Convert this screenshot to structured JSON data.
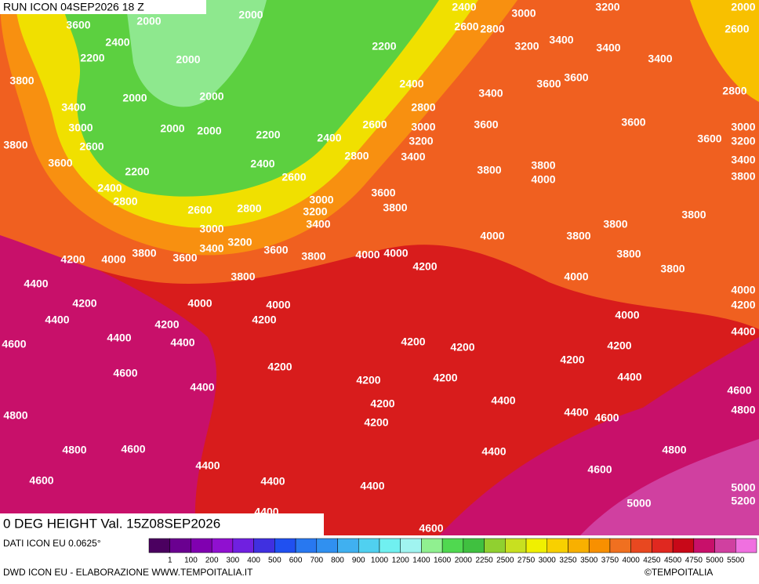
{
  "header": {
    "run": "RUN ICON 04SEP2026 18 Z",
    "field": "0 DEG HEIGHT Val. 15Z08SEP2026"
  },
  "footer": {
    "source": "DATI ICON EU 0.0625°",
    "credit": "DWD ICON EU - ELABORAZIONE WWW.TEMPOITALIA.IT",
    "copyright": "©TEMPOITALIA"
  },
  "contour_labels": [
    3600,
    2000,
    2000,
    2400,
    2200,
    2000,
    2200,
    2400,
    2600,
    2800,
    3000,
    3200,
    3200,
    3400,
    3400,
    3400,
    2000,
    2600,
    3800,
    2000,
    2000,
    3400,
    3000,
    2000,
    2000,
    2400,
    2800,
    3600,
    3600,
    3400,
    2800,
    3800,
    2600,
    2200,
    2400,
    2600,
    3000,
    3200,
    3400,
    3600,
    3600,
    3600,
    3000,
    3200,
    3400,
    3800,
    3600,
    2200,
    2400,
    2800,
    2600,
    3800,
    3800,
    4000,
    2400,
    2800,
    3000,
    3200,
    3400,
    2600,
    2800,
    3600,
    3800,
    3800,
    3000,
    3200,
    3400,
    3600,
    3800,
    4000,
    3800,
    3800,
    4200,
    4000,
    3800,
    3600,
    4000,
    4000,
    4200,
    3800,
    3800,
    4400,
    3800,
    4000,
    4000,
    4200,
    4200,
    4000,
    4000,
    4400,
    4200,
    4200,
    4000,
    4400,
    4600,
    4400,
    4400,
    4200,
    4200,
    4200,
    4200,
    4600,
    4200,
    4200,
    4200,
    4400,
    4400,
    4600,
    4200,
    4400,
    4400,
    4800,
    4200,
    4600,
    4800,
    4800,
    4600,
    4400,
    4800,
    4400,
    4600,
    4600,
    4400,
    4400,
    5000,
    5000,
    5200,
    4400,
    4600
  ],
  "legend": {
    "colors": [
      "#4b0060",
      "#6a0090",
      "#8000b0",
      "#9010d0",
      "#7020e0",
      "#4030e0",
      "#2050f0",
      "#2878f0",
      "#3090f0",
      "#40b0f0",
      "#50d0f0",
      "#70f0f0",
      "#a0f4f0",
      "#90f090",
      "#50d850",
      "#40c040",
      "#90d030",
      "#c8e020",
      "#f0f000",
      "#f8d000",
      "#f8b000",
      "#f89000",
      "#f07020",
      "#e84820",
      "#e02820",
      "#c80818",
      "#c8106a",
      "#d040a0",
      "#f070e0"
    ],
    "labels": [
      1,
      100,
      200,
      300,
      400,
      500,
      600,
      700,
      800,
      900,
      1000,
      1200,
      1400,
      1600,
      2000,
      2250,
      2500,
      2750,
      3000,
      3250,
      3500,
      3750,
      4000,
      4250,
      4500,
      4750,
      5000,
      5500
    ]
  }
}
